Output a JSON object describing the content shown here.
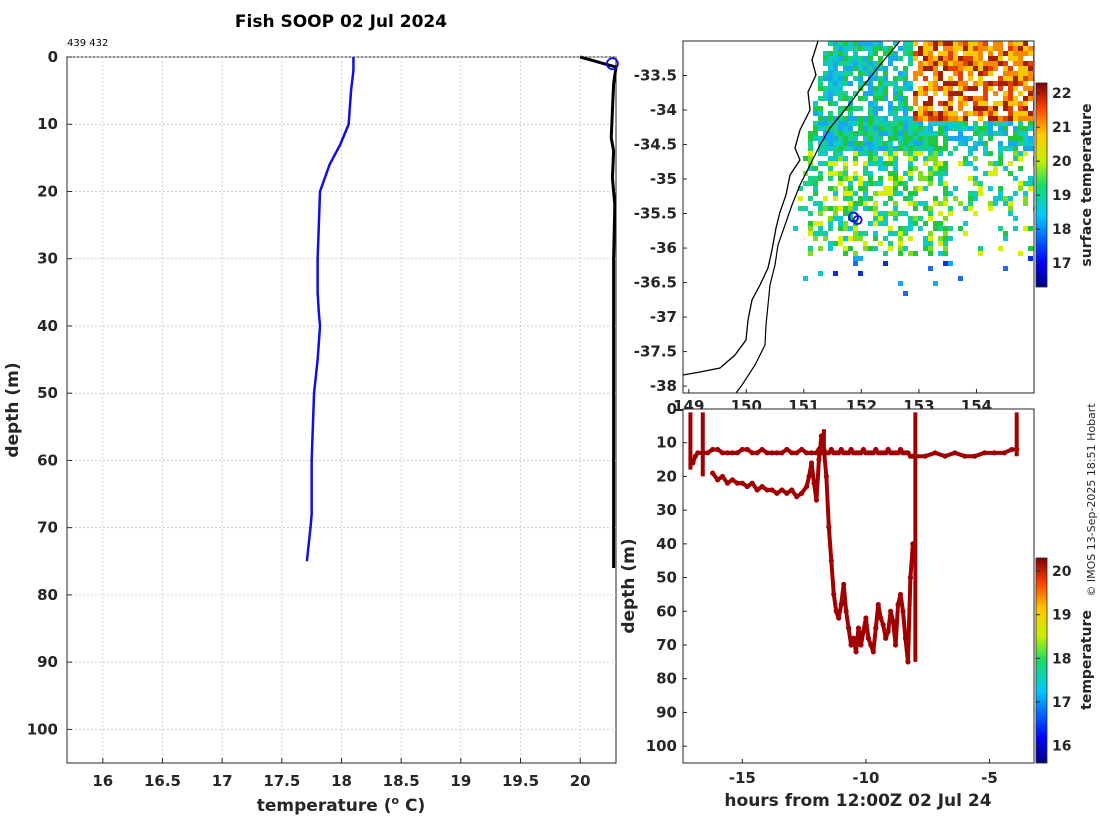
{
  "title": "Fish SOOP 02 Jul 2024",
  "credit": "© IMOS 13-Sep-2025 18:51 Hobart",
  "chart_data": [
    {
      "type": "line",
      "name": "temperature-profile",
      "xlabel": "temperature (° C)",
      "xlabel_main": "temperature (",
      "xlabel_sup": "o",
      "xlabel_tail": " C)",
      "ylabel": "depth (m)",
      "xlim": [
        15.7,
        20.3
      ],
      "ylim": [
        0,
        105
      ],
      "x_ticks": [
        16,
        16.5,
        17,
        17.5,
        18,
        18.5,
        19,
        19.5,
        20
      ],
      "y_ticks": [
        0,
        10,
        20,
        30,
        40,
        50,
        60,
        70,
        80,
        90,
        100
      ],
      "top_annotation": "439 432",
      "series": [
        {
          "name": "profile",
          "color": "#1010e0",
          "temperature": [
            18.1,
            18.1,
            18.08,
            18.06,
            17.99,
            17.9,
            17.82,
            17.81,
            17.8,
            17.8,
            17.81,
            17.82,
            17.8,
            17.77,
            17.76,
            17.75,
            17.75,
            17.75,
            17.74,
            17.71
          ],
          "depth": [
            0,
            2,
            5,
            10,
            13,
            16,
            20,
            25,
            30,
            35,
            38,
            40,
            45,
            50,
            55,
            60,
            65,
            68,
            70,
            75
          ]
        }
      ],
      "marker": {
        "temperature": 20.27,
        "depth": 1,
        "color": "#1010e0"
      }
    },
    {
      "type": "heatmap",
      "name": "surface-temperature-map",
      "colorbar_label": "surface temperature",
      "colorbar_range": [
        16.3,
        22.3
      ],
      "colorbar_ticks": [
        17,
        18,
        19,
        20,
        21,
        22
      ],
      "lat_ticks": [
        -33.5,
        -34,
        -34.5,
        -35,
        -35.5,
        -36,
        -36.5,
        -37,
        -37.5,
        -38
      ],
      "lat_tick_labels": [
        "-33.5",
        "-34",
        "-34.5",
        "-35",
        "-35.5",
        "-36",
        "-36.5",
        "-37",
        "-37.5",
        "-38"
      ],
      "lon_ticks": [
        149,
        150,
        151,
        152,
        153,
        154
      ],
      "lon_tick_labels": [
        "149",
        "150",
        "151",
        "152",
        "153",
        "154"
      ],
      "lat_range": [
        -38.1,
        -33.0
      ],
      "lon_range": [
        148.9,
        155.0
      ],
      "location": {
        "lon": 151.9,
        "lat": -35.55
      }
    },
    {
      "type": "scatter",
      "name": "depth-time-track",
      "xlabel": "hours from 12:00Z 02 Jul 24",
      "ylabel": "depth (m)",
      "xlim": [
        -17.4,
        -3.2
      ],
      "ylim": [
        0,
        105
      ],
      "x_ticks": [
        -15,
        -10,
        -5
      ],
      "x_tick_labels": [
        "-15",
        "-10",
        "-5"
      ],
      "y_ticks": [
        0,
        10,
        20,
        30,
        40,
        50,
        60,
        70,
        80,
        90,
        100
      ],
      "colorbar_label": "temperature",
      "colorbar_range": [
        15.6,
        20.3
      ],
      "colorbar_ticks": [
        16,
        17,
        18,
        19,
        20
      ],
      "point_color": "#a00000",
      "hours": [
        -17.0,
        -16.9,
        -16.8,
        -16.6,
        -16.4,
        -16.2,
        -16.0,
        -15.8,
        -15.6,
        -15.4,
        -15.2,
        -15.0,
        -14.8,
        -14.6,
        -14.4,
        -14.2,
        -14.0,
        -13.8,
        -13.6,
        -13.4,
        -13.2,
        -13.0,
        -12.8,
        -12.6,
        -12.4,
        -12.2,
        -12.0,
        -11.9,
        -11.8,
        -11.7,
        -11.6,
        -11.5,
        -11.4,
        -11.3,
        -11.2,
        -11.1,
        -11.0,
        -10.9,
        -10.8,
        -10.7,
        -10.6,
        -10.5,
        -10.4,
        -10.3,
        -10.2,
        -10.1,
        -10.0,
        -9.9,
        -9.8,
        -9.7,
        -9.6,
        -9.5,
        -9.4,
        -9.3,
        -9.2,
        -9.1,
        -9.0,
        -8.9,
        -8.8,
        -8.7,
        -8.6,
        -8.5,
        -8.4,
        -8.3,
        -8.2,
        -8.1,
        -8.0,
        -7.6,
        -7.2,
        -6.8,
        -6.4,
        -6.0,
        -5.6,
        -5.2,
        -4.8,
        -4.4,
        -4.1,
        -3.9
      ],
      "depths": [
        16,
        14,
        13,
        13,
        13,
        12,
        12,
        13,
        13,
        13,
        13,
        12,
        12,
        13,
        13,
        12,
        13,
        13,
        13,
        13,
        12,
        13,
        13,
        12,
        13,
        13,
        13,
        12,
        13,
        13,
        13,
        13,
        12,
        13,
        13,
        13,
        12,
        13,
        13,
        13,
        12,
        13,
        13,
        13,
        13,
        12,
        13,
        13,
        13,
        13,
        12,
        13,
        13,
        13,
        13,
        12,
        13,
        13,
        13,
        13,
        12,
        13,
        13,
        13,
        14,
        14,
        14,
        14,
        13,
        14,
        13,
        14,
        14,
        13,
        13,
        13,
        12,
        12
      ],
      "dive_hours": [
        -16.2,
        -16.0,
        -15.8,
        -15.6,
        -15.4,
        -15.2,
        -15.0,
        -14.8,
        -14.6,
        -14.4,
        -14.2,
        -14.0,
        -13.8,
        -13.6,
        -13.4,
        -13.2,
        -13.0,
        -12.8,
        -12.6,
        -12.4,
        -12.3,
        -12.2,
        -12.1,
        -12.0,
        -11.9,
        -11.8,
        -11.7,
        -11.6,
        -11.5,
        -11.4,
        -11.3,
        -11.2,
        -11.1,
        -11.0,
        -10.9,
        -10.8,
        -10.7,
        -10.6,
        -10.5,
        -10.4,
        -10.3,
        -10.2,
        -10.1,
        -10.0,
        -9.9,
        -9.8,
        -9.7,
        -9.6,
        -9.5,
        -9.4,
        -9.3,
        -9.2,
        -9.1,
        -9.0,
        -8.9,
        -8.8,
        -8.7,
        -8.6,
        -8.5,
        -8.4,
        -8.3,
        -8.2,
        -8.1
      ],
      "dive_depths": [
        19,
        21,
        20,
        22,
        21,
        22,
        22,
        23,
        22,
        24,
        23,
        24,
        24,
        25,
        24,
        25,
        24,
        26,
        25,
        23,
        20,
        16,
        22,
        27,
        15,
        8,
        12,
        20,
        35,
        45,
        55,
        60,
        62,
        58,
        52,
        60,
        65,
        70,
        68,
        72,
        65,
        70,
        66,
        62,
        68,
        70,
        72,
        65,
        58,
        62,
        64,
        68,
        66,
        60,
        63,
        70,
        58,
        55,
        60,
        68,
        75,
        50,
        40
      ]
    }
  ]
}
